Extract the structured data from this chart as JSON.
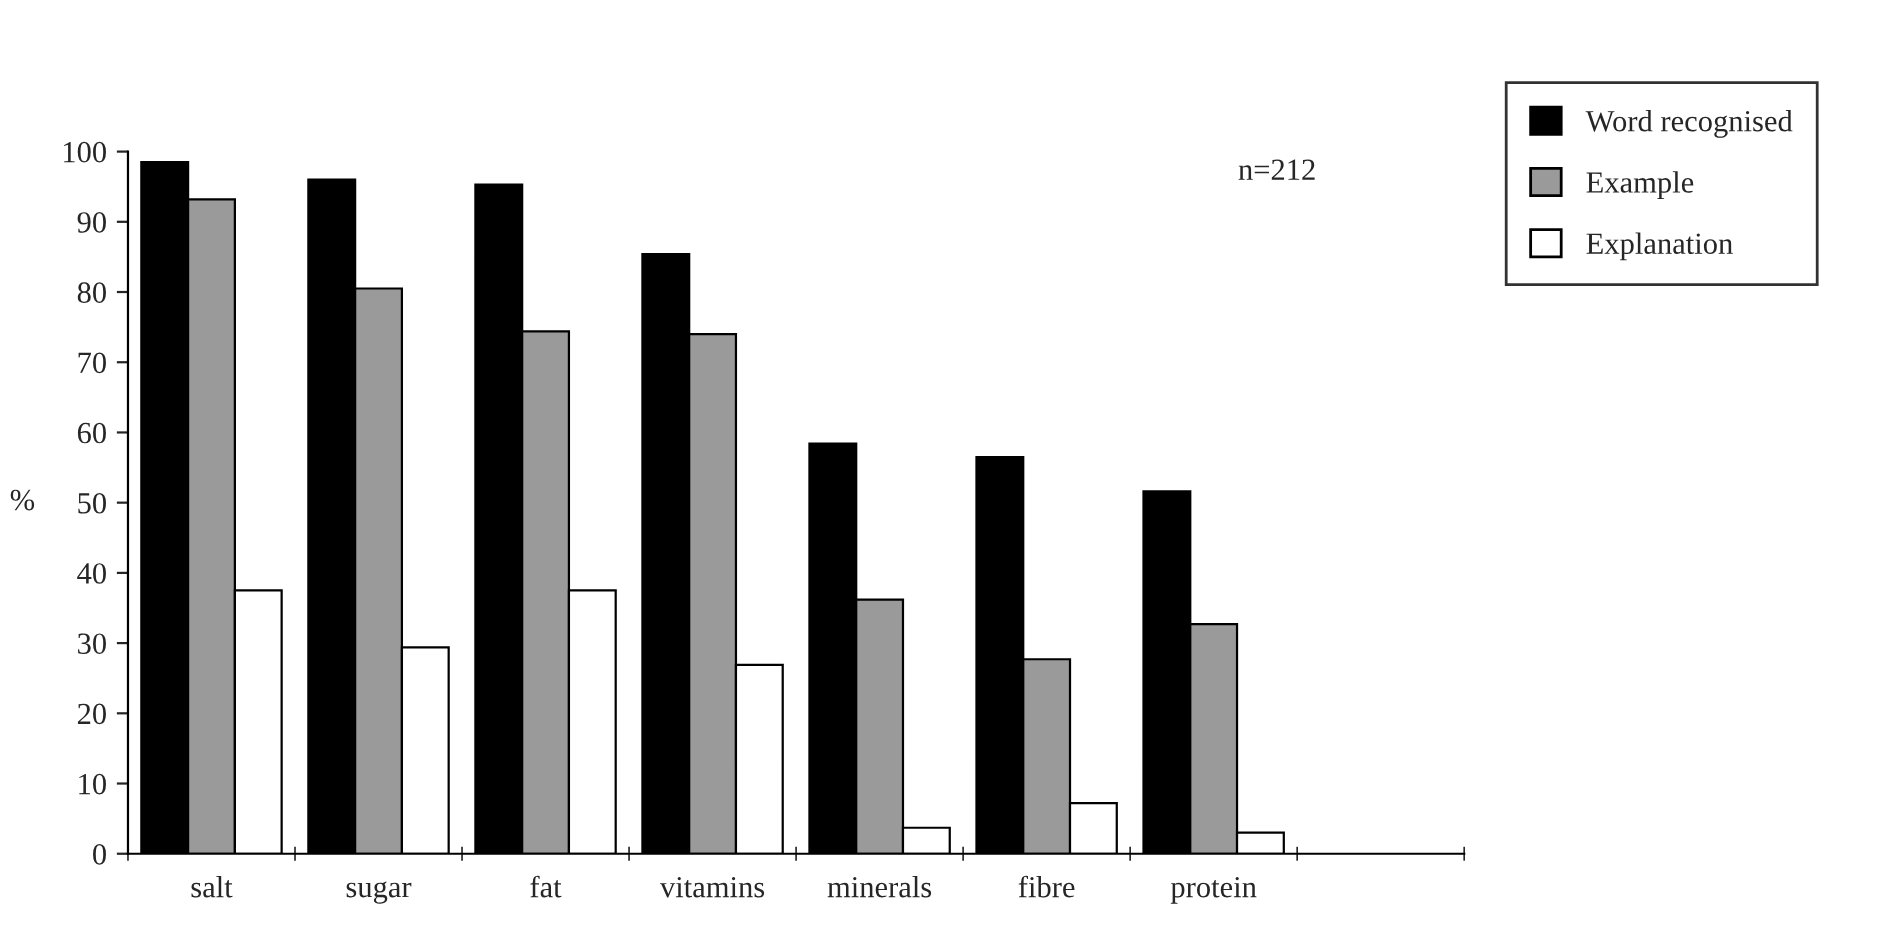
{
  "chart_data": {
    "type": "bar",
    "ylabel": "%",
    "categories": [
      "salt",
      "sugar",
      "fat",
      "vitamins",
      "minerals",
      "fibre",
      "protein",
      null
    ],
    "series": [
      {
        "name": "Word recognised",
        "color": "#000000",
        "values": [
          98.5,
          96,
          95.3,
          85.4,
          58.4,
          56.5,
          51.6,
          null
        ]
      },
      {
        "name": "Example",
        "color": "#9a9a9a",
        "values": [
          93.2,
          80.5,
          74.4,
          74,
          36.2,
          27.7,
          32.7,
          null
        ]
      },
      {
        "name": "Explanation",
        "color": "#ffffff",
        "values": [
          37.5,
          29.4,
          37.5,
          26.9,
          3.7,
          7.2,
          3.0,
          null
        ]
      }
    ],
    "ylim": [
      0,
      100
    ],
    "yticks": [
      0,
      10,
      20,
      30,
      40,
      50,
      60,
      70,
      80,
      90,
      100
    ],
    "annotations": [
      "n=212"
    ],
    "grid": false,
    "legend": "top right"
  }
}
